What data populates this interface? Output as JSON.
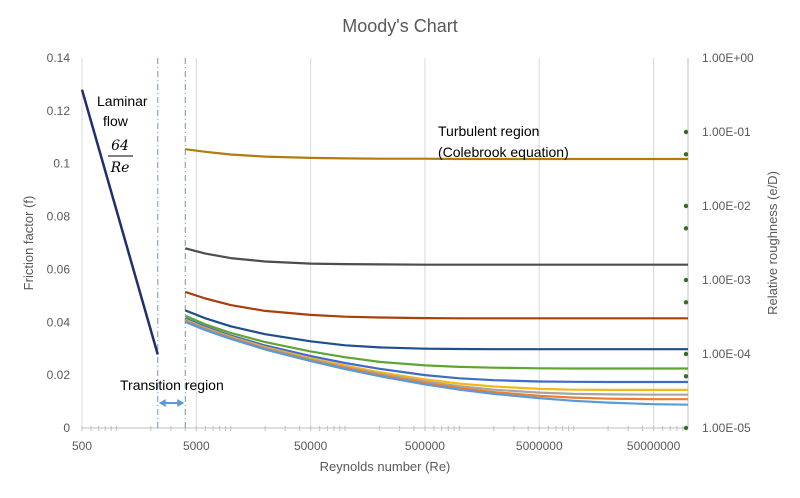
{
  "chart_data": {
    "type": "line",
    "title": "Moody's Chart",
    "xlabel": "Reynolds number (Re)",
    "ylabel": "Friction factor (f)",
    "y2label": "Relative roughness (e/D)",
    "x_scale": "log",
    "xlim": [
      500,
      100000000
    ],
    "ylim": [
      0,
      0.14
    ],
    "x_ticks": [
      "500",
      "5000",
      "50000",
      "500000",
      "5000000",
      "50000000"
    ],
    "y_ticks": [
      "0",
      "0.02",
      "0.04",
      "0.06",
      "0.08",
      "0.1",
      "0.12",
      "0.14"
    ],
    "y2_ticks": [
      "1.00E-05",
      "1.00E-04",
      "1.00E-03",
      "1.00E-02",
      "1.00E-01",
      "1.00E+00"
    ],
    "y2_scale": "log",
    "y2lim": [
      1e-05,
      1
    ],
    "grid": "vertical",
    "annotations": {
      "laminar_line1": "Laminar",
      "laminar_line2": "flow",
      "laminar_num": "64",
      "laminar_den": "Re",
      "turbulent_line1": "Turbulent region",
      "turbulent_line2": "(Colebrook equation)",
      "transition": "Transition region"
    },
    "transition_bounds": [
      2300,
      4000
    ],
    "laminar": {
      "color": "#1f2e6e",
      "x": [
        500,
        2300
      ],
      "y": [
        0.128,
        0.0278
      ]
    },
    "turbulent_x": [
      4000,
      6000,
      10000,
      20000,
      50000,
      100000,
      200000,
      500000,
      1000000,
      2000000,
      5000000,
      10000000,
      20000000,
      50000000,
      100000000
    ],
    "series": [
      {
        "color": "#b07c0c",
        "values": [
          0.1055,
          0.1045,
          0.1035,
          0.1027,
          0.1022,
          0.102,
          0.1019,
          0.1019,
          0.1018,
          0.1018,
          0.1018,
          0.1018,
          0.1018,
          0.1018,
          0.1018
        ]
      },
      {
        "color": "#4d4d4d",
        "values": [
          0.068,
          0.066,
          0.0643,
          0.063,
          0.0622,
          0.062,
          0.0619,
          0.0618,
          0.0618,
          0.0618,
          0.0618,
          0.0618,
          0.0618,
          0.0618,
          0.0618
        ]
      },
      {
        "color": "#a8400c",
        "values": [
          0.0515,
          0.049,
          0.0465,
          0.0443,
          0.0428,
          0.0421,
          0.0418,
          0.0416,
          0.0415,
          0.0415,
          0.0415,
          0.0415,
          0.0415,
          0.0415,
          0.0415
        ]
      },
      {
        "color": "#1f4e8c",
        "values": [
          0.0445,
          0.0415,
          0.0385,
          0.0355,
          0.0328,
          0.0313,
          0.0305,
          0.03,
          0.0299,
          0.0298,
          0.0298,
          0.0298,
          0.0298,
          0.0298,
          0.0298
        ]
      },
      {
        "color": "#5fa532",
        "values": [
          0.0425,
          0.0392,
          0.036,
          0.0325,
          0.029,
          0.0268,
          0.025,
          0.0237,
          0.0231,
          0.0228,
          0.0226,
          0.0225,
          0.0225,
          0.0225,
          0.0225
        ]
      },
      {
        "color": "#3d6cc7",
        "values": [
          0.0415,
          0.0383,
          0.035,
          0.0312,
          0.0272,
          0.0246,
          0.0224,
          0.02,
          0.0188,
          0.0181,
          0.0176,
          0.0175,
          0.0174,
          0.0174,
          0.0174
        ]
      },
      {
        "color": "#f2b818",
        "values": [
          0.041,
          0.0378,
          0.0345,
          0.0306,
          0.0264,
          0.0236,
          0.0211,
          0.0184,
          0.0168,
          0.0157,
          0.0148,
          0.0145,
          0.0144,
          0.0144,
          0.0144
        ]
      },
      {
        "color": "#a5a5a5",
        "values": [
          0.0408,
          0.0376,
          0.0343,
          0.0303,
          0.026,
          0.0231,
          0.0205,
          0.0176,
          0.0158,
          0.0145,
          0.0134,
          0.0129,
          0.0127,
          0.0126,
          0.0126
        ]
      },
      {
        "color": "#ed7d31",
        "values": [
          0.0405,
          0.0373,
          0.034,
          0.03,
          0.0256,
          0.0227,
          0.02,
          0.017,
          0.0151,
          0.0136,
          0.0122,
          0.0115,
          0.0111,
          0.0109,
          0.0109
        ]
      },
      {
        "color": "#5b9bd5",
        "values": [
          0.0402,
          0.037,
          0.0337,
          0.0297,
          0.0253,
          0.0223,
          0.0196,
          0.0165,
          0.0145,
          0.0129,
          0.0113,
          0.0103,
          0.0096,
          0.009,
          0.0088
        ]
      }
    ],
    "roughness_markers": {
      "color": "#3a6b1f",
      "values": [
        0.1,
        0.05,
        0.01,
        0.005,
        0.001,
        0.0005,
        0.0001,
        5e-05,
        1e-05
      ]
    }
  }
}
